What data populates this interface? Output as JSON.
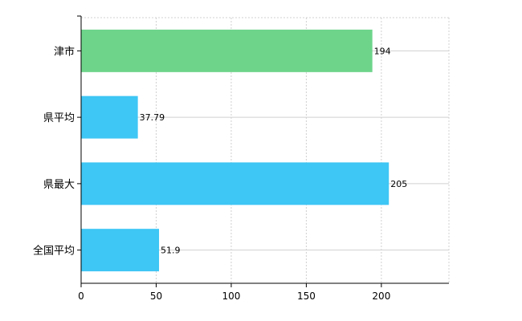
{
  "chart_data": {
    "type": "bar",
    "orientation": "horizontal",
    "title": "",
    "xlabel": "",
    "ylabel": "",
    "categories": [
      "津市",
      "県平均",
      "県最大",
      "全国平均"
    ],
    "values": [
      194,
      37.79,
      205,
      51.9
    ],
    "value_labels": [
      "194",
      "37.79",
      "205",
      "51.9"
    ],
    "bar_colors": [
      "#6dd48a",
      "#3ec6f4",
      "#3ec6f4",
      "#3ec6f4"
    ],
    "xlim": [
      0,
      245
    ],
    "xticks": [
      0,
      50,
      100,
      150,
      200
    ],
    "xtick_labels": [
      "0",
      "50",
      "100",
      "150",
      "200"
    ],
    "grid": true,
    "legend": "none"
  }
}
